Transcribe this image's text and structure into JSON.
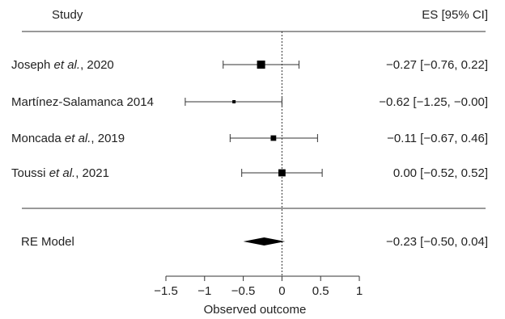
{
  "chart_data": {
    "type": "forest",
    "header_left": "Study",
    "header_right": "ES [95% CI]",
    "xlabel": "Observed outcome",
    "xlim": [
      -1.5,
      1
    ],
    "xticks": [
      "−1.5",
      "−1",
      "−0.5",
      "0",
      "0.5",
      "1"
    ],
    "xtick_values": [
      -1.5,
      -1,
      -0.5,
      0,
      0.5,
      1
    ],
    "reference_line": 0,
    "studies": [
      {
        "name": "Joseph",
        "suffix": " et al.",
        "year": ", 2020",
        "es": -0.27,
        "lo": -0.76,
        "hi": 0.22,
        "weight": 1.0,
        "label": "−0.27 [−0.76, 0.22]"
      },
      {
        "name": "Martínez-Salamanca 2014",
        "suffix": "",
        "year": "",
        "es": -0.62,
        "lo": -1.25,
        "hi": 0.0,
        "weight": 0.25,
        "label": "−0.62 [−1.25, −0.00]"
      },
      {
        "name": "Moncada",
        "suffix": " et al.",
        "year": ", 2019",
        "es": -0.11,
        "lo": -0.67,
        "hi": 0.46,
        "weight": 0.6,
        "label": "−0.11 [−0.67, 0.46]"
      },
      {
        "name": "Toussi",
        "suffix": " et al.",
        "year": ", 2021",
        "es": 0.0,
        "lo": -0.52,
        "hi": 0.52,
        "weight": 0.85,
        "label": "0.00 [−0.52, 0.52]"
      }
    ],
    "summary": {
      "name": "RE Model",
      "es": -0.23,
      "lo": -0.5,
      "hi": 0.04,
      "label": "−0.23 [−0.50, 0.04]"
    }
  }
}
